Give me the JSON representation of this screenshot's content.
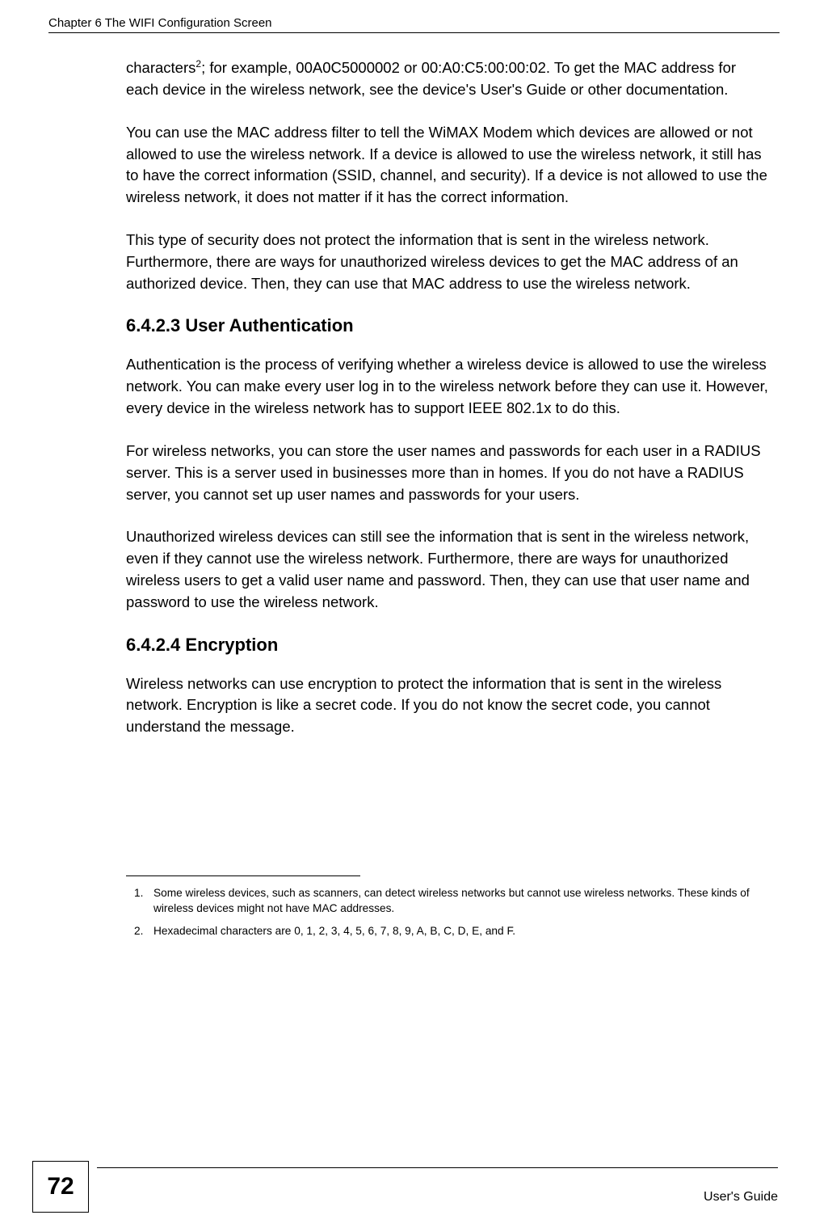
{
  "header": {
    "chapter_title": "Chapter 6 The WIFI Configuration Screen"
  },
  "body": {
    "p1_a": "characters",
    "p1_sup": "2",
    "p1_b": "; for example, 00A0C5000002 or 00:A0:C5:00:00:02. To get the MAC address for each device in the wireless network, see the device's User's Guide or other documentation.",
    "p2": "You can use the MAC address filter to tell the WiMAX Modem which devices are allowed or not allowed to use the wireless network. If a device is allowed to use the wireless network, it still has to have the correct information (SSID, channel, and security). If a device is not allowed to use the wireless network, it does not matter if it has the correct information.",
    "p3": "This type of security does not protect the information that is sent in the wireless network. Furthermore, there are ways for unauthorized wireless devices to get the MAC address of an authorized device. Then, they can use that MAC address to use the wireless network.",
    "h1": "6.4.2.3  User Authentication",
    "p4": "Authentication is the process of verifying whether a wireless device is allowed to use the wireless network. You can make every user log in to the wireless network before they can use it. However, every device in the wireless network has to support IEEE 802.1x to do this.",
    "p5": "For wireless networks, you can store the user names and passwords for each user in a RADIUS server. This is a server used in businesses more than in homes. If you do not have a RADIUS server, you cannot set up user names and passwords for your users.",
    "p6": "Unauthorized wireless devices can still see the information that is sent in the wireless network, even if they cannot use the wireless network. Furthermore, there are ways for unauthorized wireless users to get a valid user name and password. Then, they can use that user name and password to use the wireless network.",
    "h2": "6.4.2.4  Encryption",
    "p7": "Wireless networks can use encryption to protect the information that is sent in the wireless network. Encryption is like a secret code. If you do not know the secret code, you cannot understand the message."
  },
  "footnotes": {
    "n1": "1.",
    "t1": "Some wireless devices, such as scanners, can detect wireless networks but cannot use wireless networks. These kinds of wireless devices might not have MAC addresses.",
    "n2": "2.",
    "t2": "Hexadecimal characters are 0, 1, 2, 3, 4, 5, 6, 7, 8, 9, A, B, C, D, E, and F."
  },
  "footer": {
    "page_number": "72",
    "guide_label": "User's Guide"
  }
}
